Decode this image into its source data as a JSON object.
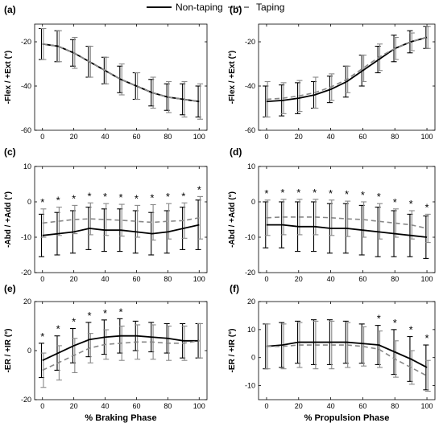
{
  "legend": {
    "items": [
      {
        "label": "Non-taping",
        "color": "#000000",
        "dash": "none"
      },
      {
        "label": "Taping",
        "color": "#888888",
        "dash": "dashed"
      }
    ]
  },
  "chart_data": [
    {
      "type": "line",
      "panel": "(a)",
      "x": [
        0,
        10,
        20,
        30,
        40,
        50,
        60,
        70,
        80,
        90,
        100
      ],
      "ylabel": "-Flex / +Ext (°)",
      "xlabel": "",
      "xlim": [
        -5,
        105
      ],
      "ylim": [
        -60,
        -12
      ],
      "xticks": [
        0,
        20,
        40,
        60,
        80,
        100
      ],
      "yticks": [
        -60,
        -40,
        -20
      ],
      "series": [
        {
          "name": "Non-taping",
          "values": [
            -21,
            -22,
            -25,
            -29,
            -33,
            -37,
            -40,
            -43,
            -45,
            -46,
            -47
          ],
          "err": [
            7,
            7,
            6,
            7,
            6,
            6,
            6,
            6,
            6,
            7,
            7
          ]
        },
        {
          "name": "Taping",
          "values": [
            -21,
            -22,
            -25,
            -29,
            -33,
            -37,
            -40,
            -43,
            -45,
            -46,
            -47
          ],
          "err": [
            7,
            7,
            7,
            7,
            6,
            7,
            6,
            7,
            7,
            8,
            8
          ]
        }
      ],
      "annotations": []
    },
    {
      "type": "line",
      "panel": "(b)",
      "x": [
        0,
        10,
        20,
        30,
        40,
        50,
        60,
        70,
        80,
        90,
        100
      ],
      "ylabel": "-Flex / +Ext (°)",
      "xlabel": "",
      "xlim": [
        -5,
        105
      ],
      "ylim": [
        -60,
        -12
      ],
      "xticks": [
        0,
        20,
        40,
        60,
        80,
        100
      ],
      "yticks": [
        -60,
        -40,
        -20
      ],
      "series": [
        {
          "name": "Non-taping",
          "values": [
            -47,
            -46.5,
            -45.5,
            -44,
            -41.5,
            -38,
            -33,
            -28,
            -23,
            -20,
            -18
          ],
          "err": [
            7,
            7,
            7,
            6,
            6,
            7,
            7,
            6,
            6,
            5,
            5
          ]
        },
        {
          "name": "Taping",
          "values": [
            -46,
            -45.5,
            -44.5,
            -43,
            -40.5,
            -37,
            -32,
            -27,
            -23,
            -20,
            -18
          ],
          "err": [
            8,
            7,
            7,
            7,
            6,
            6,
            6,
            6,
            5,
            4,
            5
          ]
        }
      ],
      "annotations": []
    },
    {
      "type": "line",
      "panel": "(c)",
      "x": [
        0,
        10,
        20,
        30,
        40,
        50,
        60,
        70,
        80,
        90,
        100
      ],
      "ylabel": "-Abd / +Add (°)",
      "xlabel": "",
      "xlim": [
        -5,
        105
      ],
      "ylim": [
        -20,
        10
      ],
      "xticks": [
        0,
        20,
        40,
        60,
        80,
        100
      ],
      "yticks": [
        -20,
        -10,
        0,
        10
      ],
      "series": [
        {
          "name": "Non-taping",
          "values": [
            -9.5,
            -9,
            -8.5,
            -7.5,
            -8,
            -8,
            -8.5,
            -9,
            -8.5,
            -7.5,
            -6.5
          ],
          "err": [
            6,
            6,
            6,
            6,
            6,
            6,
            6,
            6,
            6,
            6,
            7
          ]
        },
        {
          "name": "Taping",
          "values": [
            -6,
            -5.5,
            -5,
            -4.8,
            -5,
            -5.2,
            -5.5,
            -5.8,
            -5.5,
            -5.3,
            -4.5
          ],
          "err": [
            4,
            4,
            4,
            4.5,
            4.5,
            4.5,
            4.5,
            5,
            5,
            5,
            6
          ]
        }
      ],
      "annotations": [
        "*",
        "*",
        "*",
        "*",
        "*",
        "*",
        "*",
        "*",
        "*",
        "*",
        "*"
      ]
    },
    {
      "type": "line",
      "panel": "(d)",
      "x": [
        0,
        10,
        20,
        30,
        40,
        50,
        60,
        70,
        80,
        90,
        100
      ],
      "ylabel": "-Abd / +Add (°)",
      "xlabel": "",
      "xlim": [
        -5,
        105
      ],
      "ylim": [
        -20,
        10
      ],
      "xticks": [
        0,
        20,
        40,
        60,
        80,
        100
      ],
      "yticks": [
        -20,
        -10,
        0,
        10
      ],
      "series": [
        {
          "name": "Non-taping",
          "values": [
            -6.5,
            -6.5,
            -7,
            -7,
            -7.5,
            -7.5,
            -8,
            -8.5,
            -9,
            -9.5,
            -10
          ],
          "err": [
            6.5,
            6.5,
            7,
            7,
            7,
            7,
            7,
            7,
            6.5,
            6,
            6
          ]
        },
        {
          "name": "Taping",
          "values": [
            -4.5,
            -4.3,
            -4.3,
            -4.3,
            -4.5,
            -4.8,
            -5,
            -5.5,
            -6,
            -6.5,
            -7.5
          ],
          "err": [
            5,
            5,
            5,
            5,
            5,
            5,
            5,
            5,
            4,
            4,
            4
          ]
        }
      ],
      "annotations": [
        "*",
        "*",
        "*",
        "*",
        "*",
        "*",
        "*",
        "*",
        "*",
        "*",
        "*"
      ]
    },
    {
      "type": "line",
      "panel": "(e)",
      "x": [
        0,
        10,
        20,
        30,
        40,
        50,
        60,
        70,
        80,
        90,
        100
      ],
      "ylabel": "-ER / +IR (°)",
      "xlabel": "% Braking Phase",
      "xlim": [
        -5,
        105
      ],
      "ylim": [
        -20,
        20
      ],
      "xticks": [
        0,
        20,
        40,
        60,
        80,
        100
      ],
      "yticks": [
        -20,
        0,
        20
      ],
      "series": [
        {
          "name": "Non-taping",
          "values": [
            -4,
            -1,
            2,
            4.5,
            5.5,
            6,
            6,
            5.5,
            5,
            4,
            4
          ],
          "err": [
            7,
            7,
            7,
            7,
            7,
            7,
            6,
            6,
            6,
            7,
            7
          ]
        },
        {
          "name": "Taping",
          "values": [
            -8,
            -5,
            -2,
            1,
            2.5,
            3,
            3.5,
            3.5,
            3,
            3,
            4
          ],
          "err": [
            7,
            7,
            7,
            6,
            6,
            7,
            7,
            7,
            7,
            7,
            7
          ]
        }
      ],
      "annotations": [
        "*",
        "*",
        "*",
        "*",
        "*",
        "*",
        "",
        "",
        "",
        "",
        ""
      ]
    },
    {
      "type": "line",
      "panel": "(f)",
      "x": [
        0,
        10,
        20,
        30,
        40,
        50,
        60,
        70,
        80,
        90,
        100
      ],
      "ylabel": "-ER / +IR (°)",
      "xlabel": "% Propulsion Phase",
      "xlim": [
        -5,
        105
      ],
      "ylim": [
        -15,
        20
      ],
      "xticks": [
        0,
        20,
        40,
        60,
        80,
        100
      ],
      "yticks": [
        -10,
        0,
        10,
        20
      ],
      "series": [
        {
          "name": "Non-taping",
          "values": [
            4,
            4.5,
            5.5,
            5.5,
            5.5,
            5.5,
            5,
            4.5,
            2,
            -0.5,
            -3.5
          ],
          "err": [
            8,
            8,
            7.5,
            8,
            8,
            7.5,
            7,
            7,
            8,
            8,
            8
          ]
        },
        {
          "name": "Taping",
          "values": [
            4,
            4,
            4.5,
            4.5,
            4.5,
            4.5,
            4,
            3,
            -0.5,
            -3.5,
            -6.5
          ],
          "err": [
            8,
            8,
            8,
            8.5,
            8.5,
            8,
            7,
            6.5,
            6.5,
            6,
            5.5
          ]
        }
      ],
      "annotations": [
        "",
        "",
        "",
        "",
        "",
        "",
        "",
        "*",
        "*",
        "*",
        "*"
      ]
    }
  ]
}
